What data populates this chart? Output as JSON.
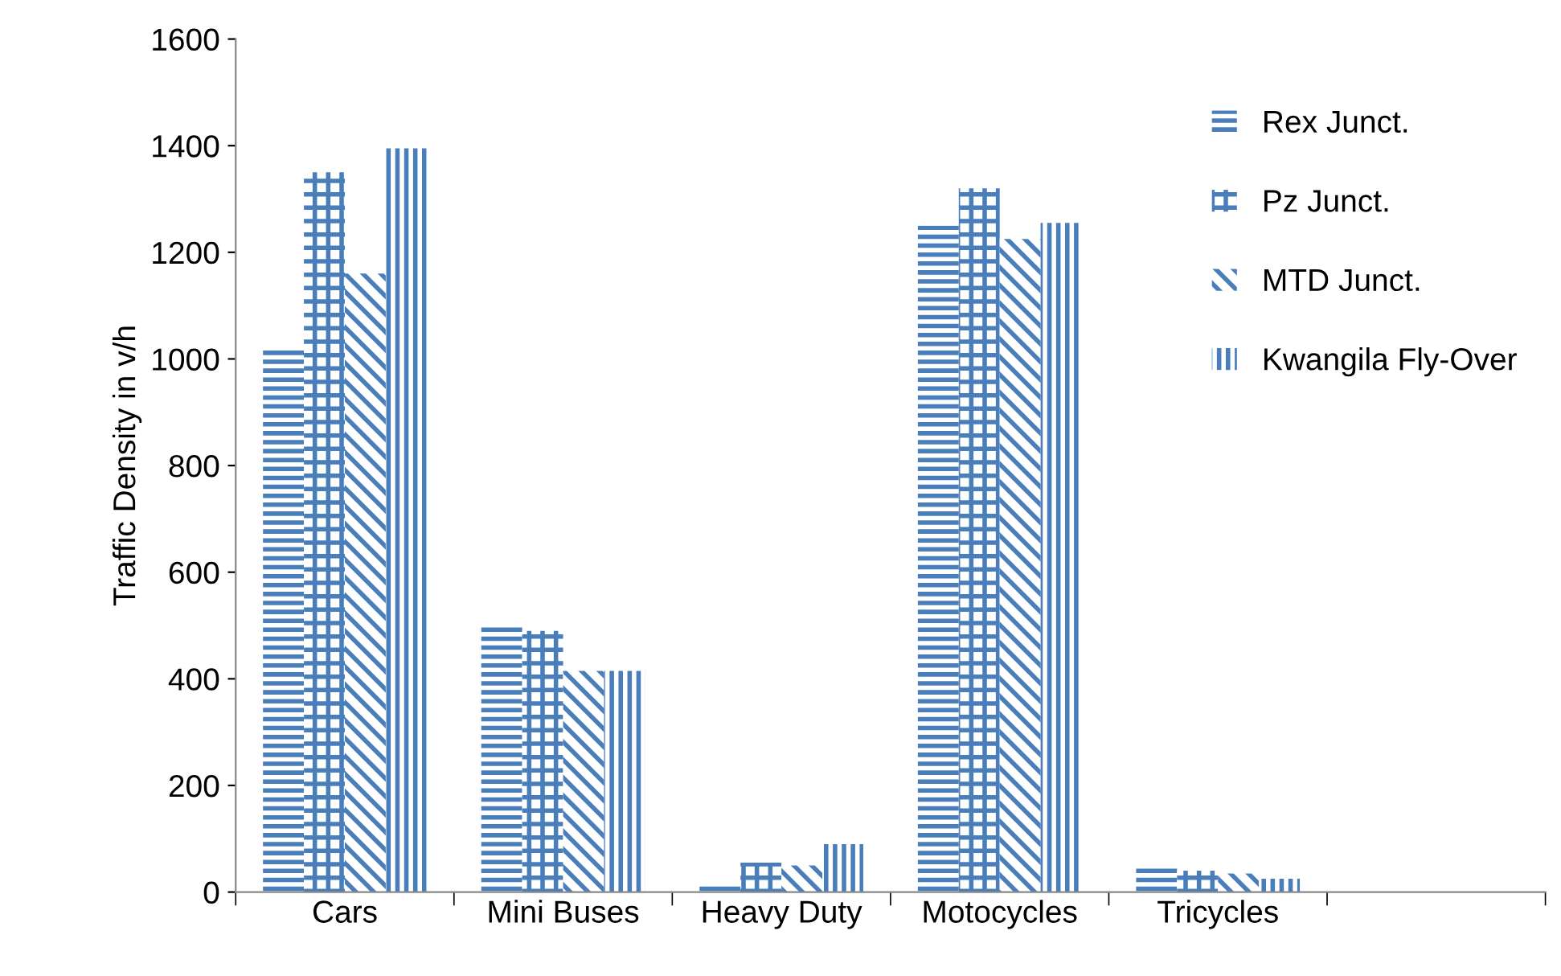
{
  "chart_data": {
    "type": "bar",
    "ylabel": "Traffic Density in v/h",
    "categories": [
      "Cars",
      "Mini Buses",
      "Heavy Duty",
      "Motocycles",
      "Tricycles",
      null
    ],
    "series": [
      {
        "name": "Rex Junct.",
        "color": "#4a7ebb",
        "values": [
          1020,
          500,
          15,
          1250,
          45,
          null
        ]
      },
      {
        "name": "Pz Junct.",
        "color": "#4a7ebb",
        "values": [
          1350,
          490,
          55,
          1320,
          40,
          null
        ]
      },
      {
        "name": "MTD Junct.",
        "color": "#4a7ebb",
        "values": [
          1160,
          415,
          50,
          1225,
          35,
          null
        ]
      },
      {
        "name": "Kwangila Fly-Over",
        "color": "#4a7ebb",
        "values": [
          1395,
          415,
          90,
          1255,
          25,
          null
        ]
      }
    ],
    "ylim": [
      0,
      1600
    ],
    "yticks": [
      0,
      200,
      400,
      600,
      800,
      1000,
      1200,
      1400,
      1600
    ],
    "grid": false,
    "legend": "top right"
  }
}
